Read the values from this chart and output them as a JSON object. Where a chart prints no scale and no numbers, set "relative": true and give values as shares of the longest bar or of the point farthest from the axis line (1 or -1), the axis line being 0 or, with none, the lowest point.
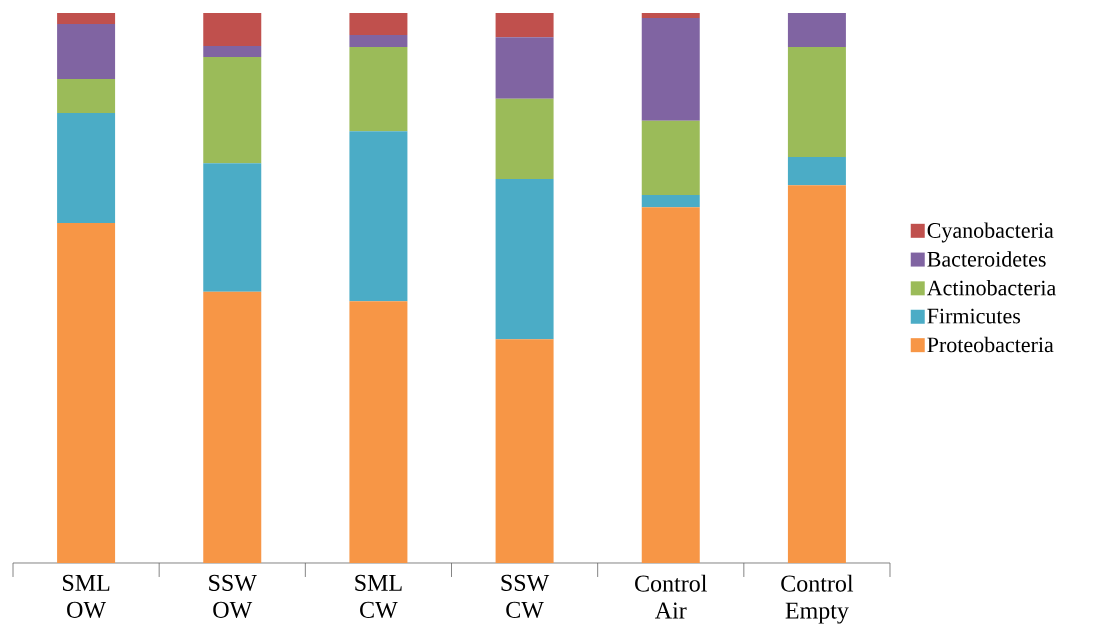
{
  "chart_data": {
    "type": "bar",
    "stacked": true,
    "relative": true,
    "legend": "right",
    "categories": [
      "SML OW",
      "SSW OW",
      "SML CW",
      "SSW CW",
      "Control Air",
      "Control Empty"
    ],
    "series": [
      {
        "name": "Proteobacteria",
        "color": "#f79646",
        "values": [
          0.618,
          0.493,
          0.476,
          0.407,
          0.647,
          0.687
        ]
      },
      {
        "name": "Firmicutes",
        "color": "#4bacc6",
        "values": [
          0.2,
          0.234,
          0.309,
          0.291,
          0.022,
          0.051
        ]
      },
      {
        "name": "Actinobacteria",
        "color": "#9bbb59",
        "values": [
          0.062,
          0.193,
          0.153,
          0.146,
          0.135,
          0.2
        ]
      },
      {
        "name": "Bacteroidetes",
        "color": "#8064a2",
        "values": [
          0.1,
          0.02,
          0.022,
          0.112,
          0.187,
          0.062
        ]
      },
      {
        "name": "Cyanobacteria",
        "color": "#c0504d",
        "values": [
          0.02,
          0.06,
          0.04,
          0.044,
          0.009,
          0.0
        ]
      }
    ]
  }
}
